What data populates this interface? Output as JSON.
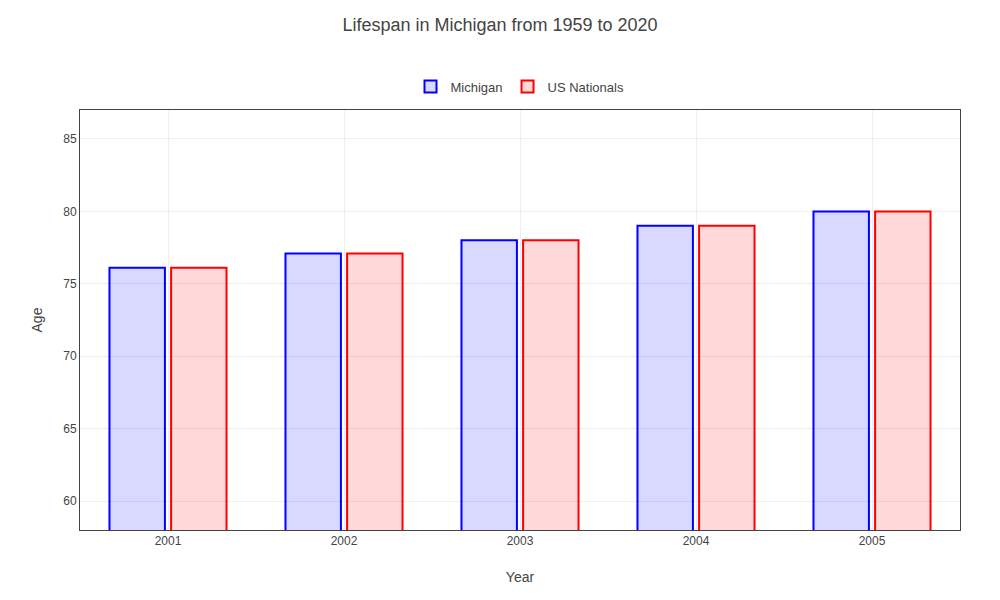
{
  "chart_data": {
    "type": "bar",
    "title": "Lifespan in Michigan from 1959 to 2020",
    "x_label": "Year",
    "y_label": "Age",
    "categories": [
      "2001",
      "2002",
      "2003",
      "2004",
      "2005"
    ],
    "series": [
      {
        "name": "Michigan",
        "color": "#0000ff",
        "values": [
          76.1,
          77.1,
          78.0,
          79.0,
          80.0
        ]
      },
      {
        "name": "US Nationals",
        "color": "#ff0000",
        "values": [
          76.1,
          77.1,
          78.0,
          79.0,
          80.0
        ]
      }
    ],
    "ylim": [
      58.0,
      87
    ],
    "yticks": [
      60,
      65,
      70,
      75,
      80,
      85
    ],
    "grid": true,
    "legend": "upper center"
  }
}
